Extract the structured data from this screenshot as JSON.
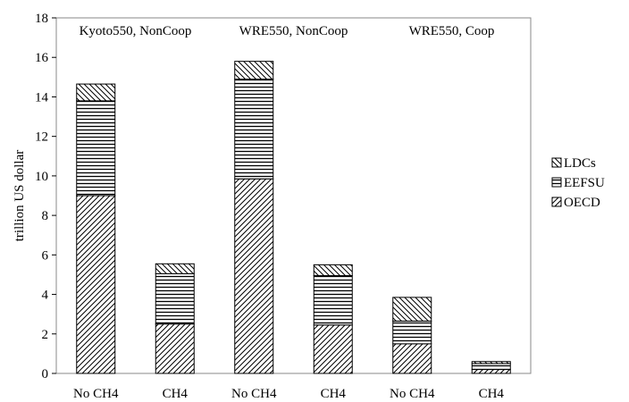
{
  "chart_data": {
    "type": "bar",
    "stacked": true,
    "ylabel": "trillion US dollar",
    "ylim": [
      0,
      18
    ],
    "yticks": [
      "0",
      "2",
      "4",
      "6",
      "8",
      "10",
      "12",
      "14",
      "16",
      "18"
    ],
    "categories": [
      "No CH4",
      "CH4",
      "No CH4",
      "CH4",
      "No CH4",
      "CH4"
    ],
    "scenarios": [
      "Kyoto550, NonCoop",
      "WRE550, NonCoop",
      "WRE550, Coop"
    ],
    "series": [
      {
        "name": "OECD",
        "pattern": "forward-diagonal",
        "values": [
          9.0,
          2.5,
          9.85,
          2.45,
          1.5,
          0.2
        ]
      },
      {
        "name": "EEFSU",
        "pattern": "horizontal",
        "values": [
          4.8,
          2.55,
          5.05,
          2.5,
          1.15,
          0.3
        ]
      },
      {
        "name": "LDCs",
        "pattern": "backward-diagonal",
        "values": [
          0.85,
          0.5,
          0.9,
          0.55,
          1.2,
          0.1
        ]
      }
    ],
    "legend_order": [
      "LDCs",
      "EEFSU",
      "OECD"
    ],
    "legend_position": "right",
    "grid": false
  }
}
